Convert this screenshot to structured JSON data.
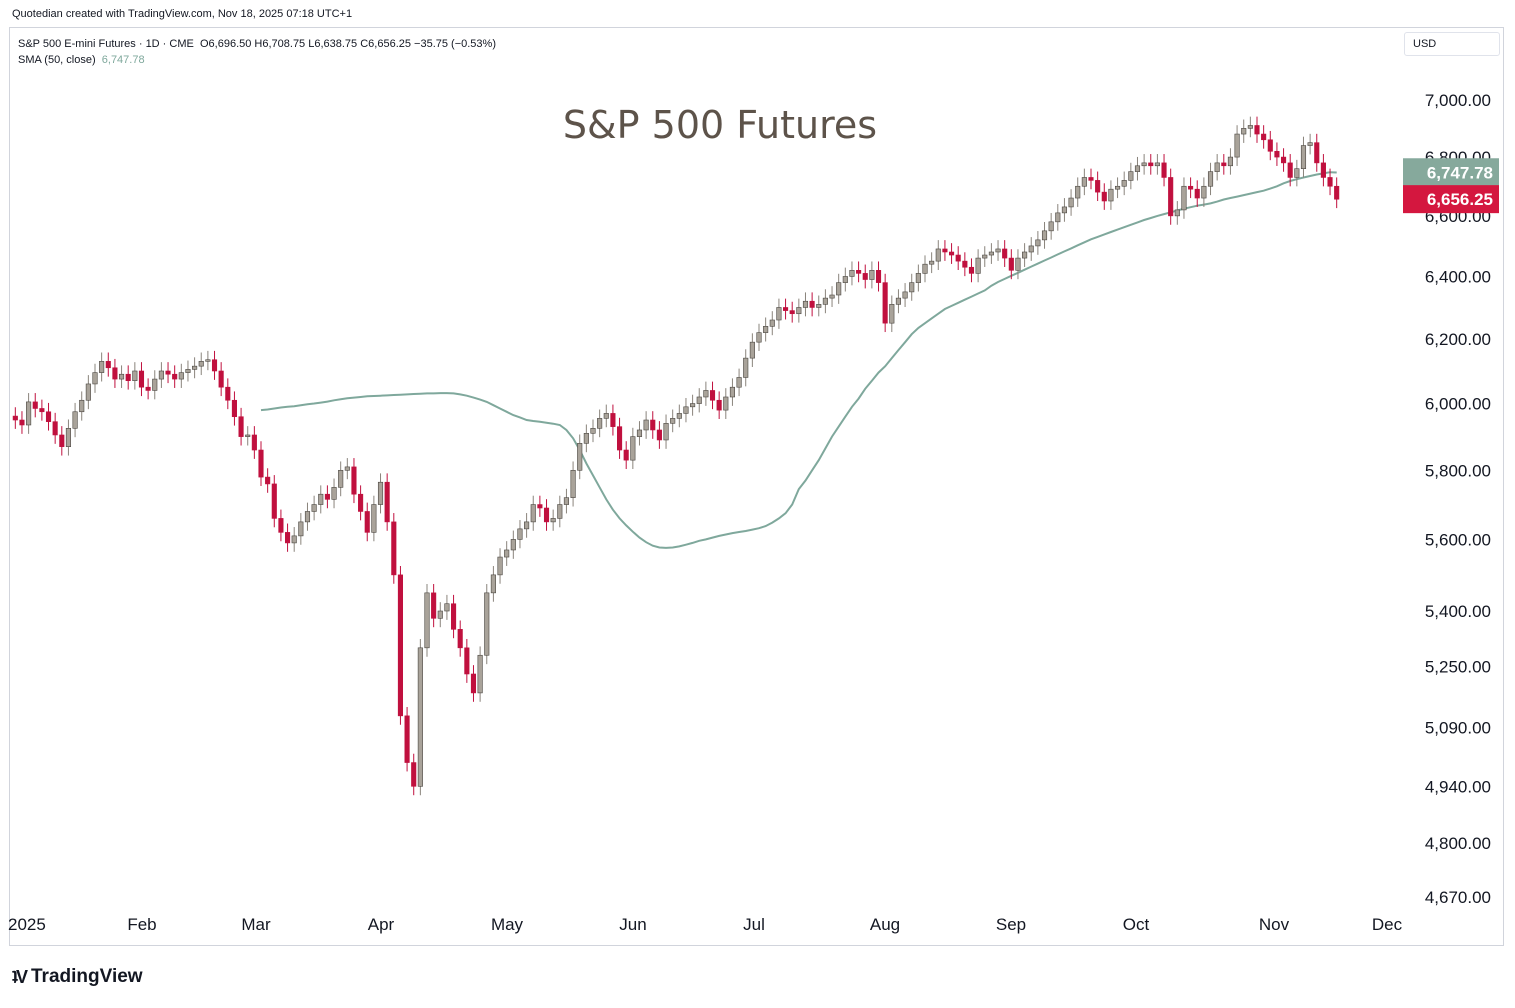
{
  "header": {
    "caption": "Quotedian created with TradingView.com, Nov 18, 2025 07:18 UTC+1"
  },
  "legend": {
    "instrument": "S&P 500 E-mini Futures · 1D · CME",
    "ohlc": "O6,696.50  H6,708.75  L6,638.75  C6,656.25  −35.75 (−0.53%)",
    "sma_label": "SMA (50, close)",
    "sma_value": "6,747.78"
  },
  "currency": "USD",
  "footer": {
    "brand": "TradingView"
  },
  "colors": {
    "up_body": "#a9a39a",
    "down_body": "#c0103e",
    "sma": "#7fa89c",
    "sma_badge": "#86a99c",
    "price_badge": "#d4173f"
  },
  "chart_data": {
    "type": "candlestick",
    "title": "S&P 500 Futures",
    "y_scale": "log",
    "ylim": [
      4620,
      7150
    ],
    "y_ticks": [
      "7,000.00",
      "6,800.00",
      "6,600.00",
      "6,400.00",
      "6,200.00",
      "6,000.00",
      "5,800.00",
      "5,600.00",
      "5,400.00",
      "5,250.00",
      "5,090.00",
      "4,940.00",
      "4,800.00",
      "4,670.00"
    ],
    "x_labels": [
      "2025",
      "Feb",
      "Mar",
      "Apr",
      "May",
      "Jun",
      "Jul",
      "Aug",
      "Sep",
      "Oct",
      "Nov",
      "Dec"
    ],
    "last_price": "6,656.25",
    "sma_last": "6,747.78",
    "close": [
      5950,
      5935,
      6005,
      5985,
      5975,
      5945,
      5905,
      5870,
      5925,
      5975,
      6010,
      6060,
      6095,
      6130,
      6110,
      6075,
      6090,
      6070,
      6100,
      6050,
      6040,
      6075,
      6100,
      6090,
      6075,
      6095,
      6105,
      6115,
      6130,
      6135,
      6100,
      6050,
      6010,
      5960,
      5900,
      5905,
      5860,
      5780,
      5760,
      5660,
      5620,
      5590,
      5610,
      5650,
      5680,
      5700,
      5730,
      5715,
      5750,
      5800,
      5810,
      5730,
      5680,
      5620,
      5700,
      5765,
      5650,
      5500,
      5120,
      5000,
      4940,
      5300,
      5450,
      5380,
      5400,
      5420,
      5350,
      5300,
      5230,
      5180,
      5280,
      5450,
      5500,
      5550,
      5570,
      5600,
      5630,
      5650,
      5700,
      5690,
      5650,
      5660,
      5700,
      5720,
      5800,
      5880,
      5910,
      5925,
      5955,
      5970,
      5930,
      5860,
      5830,
      5900,
      5920,
      5950,
      5920,
      5890,
      5940,
      5955,
      5970,
      5990,
      6000,
      6020,
      6040,
      6010,
      5980,
      6020,
      6050,
      6080,
      6140,
      6190,
      6220,
      6240,
      6260,
      6300,
      6290,
      6280,
      6300,
      6320,
      6300,
      6310,
      6330,
      6340,
      6380,
      6400,
      6420,
      6410,
      6390,
      6420,
      6380,
      6250,
      6310,
      6330,
      6350,
      6380,
      6410,
      6440,
      6450,
      6490,
      6480,
      6470,
      6450,
      6430,
      6410,
      6460,
      6470,
      6480,
      6490,
      6460,
      6420,
      6460,
      6480,
      6500,
      6520,
      6550,
      6580,
      6610,
      6630,
      6660,
      6700,
      6730,
      6720,
      6680,
      6650,
      6690,
      6700,
      6720,
      6750,
      6770,
      6780,
      6770,
      6780,
      6730,
      6600,
      6620,
      6700,
      6690,
      6660,
      6700,
      6750,
      6780,
      6770,
      6800,
      6880,
      6900,
      6910,
      6880,
      6860,
      6820,
      6800,
      6780,
      6730,
      6760,
      6840,
      6850,
      6780,
      6730,
      6700,
      6656
    ],
    "sma": [
      5980,
      5982,
      5985,
      5988,
      5990,
      5992,
      5995,
      5998,
      6000,
      6003,
      6006,
      6010,
      6013,
      6016,
      6018,
      6020,
      6022,
      6023,
      6024,
      6025,
      6026,
      6027,
      6028,
      6029,
      6030,
      6031,
      6031,
      6032,
      6032,
      6031,
      6028,
      6024,
      6018,
      6012,
      6005,
      5995,
      5985,
      5975,
      5965,
      5958,
      5950,
      5947,
      5945,
      5942,
      5939,
      5935,
      5920,
      5895,
      5860,
      5820,
      5785,
      5750,
      5715,
      5685,
      5660,
      5640,
      5622,
      5605,
      5592,
      5582,
      5577,
      5576,
      5577,
      5580,
      5585,
      5590,
      5596,
      5600,
      5605,
      5610,
      5614,
      5618,
      5621,
      5624,
      5628,
      5632,
      5638,
      5648,
      5660,
      5675,
      5700,
      5745,
      5770,
      5800,
      5830,
      5865,
      5900,
      5930,
      5960,
      5990,
      6015,
      6045,
      6070,
      6095,
      6115,
      6140,
      6165,
      6190,
      6215,
      6235,
      6250,
      6265,
      6280,
      6295,
      6305,
      6315,
      6325,
      6335,
      6345,
      6355,
      6370,
      6382,
      6392,
      6402,
      6412,
      6422,
      6432,
      6442,
      6452,
      6462,
      6472,
      6482,
      6492,
      6502,
      6512,
      6522,
      6530,
      6538,
      6546,
      6554,
      6562,
      6570,
      6578,
      6586,
      6593,
      6600,
      6606,
      6612,
      6618,
      6624,
      6629,
      6634,
      6638,
      6642,
      6648,
      6655,
      6660,
      6665,
      6670,
      6675,
      6680,
      6685,
      6692,
      6700,
      6710,
      6718,
      6724,
      6730,
      6735,
      6740,
      6744,
      6748,
      6747
    ]
  }
}
